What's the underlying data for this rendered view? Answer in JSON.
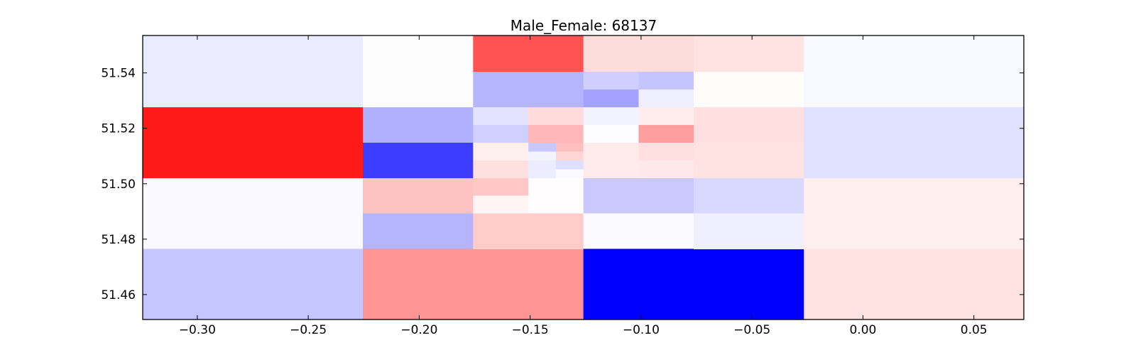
{
  "chart_data": {
    "type": "heatmap",
    "title": "Male_Female: 68137",
    "xlabel": "",
    "ylabel": "",
    "xlim": [
      -0.3246,
      0.0725
    ],
    "ylim": [
      51.451,
      51.5535
    ],
    "grid": false,
    "x_ticks": [
      {
        "value": -0.3,
        "label": "−0.30"
      },
      {
        "value": -0.25,
        "label": "−0.25"
      },
      {
        "value": -0.2,
        "label": "−0.20"
      },
      {
        "value": -0.15,
        "label": "−0.15"
      },
      {
        "value": -0.1,
        "label": "−0.10"
      },
      {
        "value": -0.05,
        "label": "−0.05"
      },
      {
        "value": 0.0,
        "label": "0.00"
      },
      {
        "value": 0.05,
        "label": "0.05"
      }
    ],
    "y_ticks": [
      {
        "value": 51.46,
        "label": "51.46"
      },
      {
        "value": 51.48,
        "label": "51.48"
      },
      {
        "value": 51.5,
        "label": "51.50"
      },
      {
        "value": 51.52,
        "label": "51.52"
      },
      {
        "value": 51.54,
        "label": "51.54"
      }
    ],
    "cells": [
      {
        "x0": -0.3246,
        "x1": -0.2254,
        "y0": 51.5276,
        "y1": 51.5535,
        "color": "#ebebff"
      },
      {
        "x0": -0.3246,
        "x1": -0.2254,
        "y0": 51.502,
        "y1": 51.5276,
        "color": "#ff1a1a"
      },
      {
        "x0": -0.3246,
        "x1": -0.2254,
        "y0": 51.4765,
        "y1": 51.502,
        "color": "#f9f9ff"
      },
      {
        "x0": -0.3246,
        "x1": -0.2254,
        "y0": 51.451,
        "y1": 51.4765,
        "color": "#c5c5ff"
      },
      {
        "x0": -0.2254,
        "x1": -0.1757,
        "y0": 51.5276,
        "y1": 51.5535,
        "color": "#fdfdfd"
      },
      {
        "x0": -0.2254,
        "x1": -0.1757,
        "y0": 51.5148,
        "y1": 51.5276,
        "color": "#b0b0ff"
      },
      {
        "x0": -0.2254,
        "x1": -0.1757,
        "y0": 51.502,
        "y1": 51.5148,
        "color": "#3d3dff"
      },
      {
        "x0": -0.2254,
        "x1": -0.1757,
        "y0": 51.4893,
        "y1": 51.502,
        "color": "#ffc2c2"
      },
      {
        "x0": -0.2254,
        "x1": -0.1757,
        "y0": 51.4765,
        "y1": 51.4893,
        "color": "#b5b5ff"
      },
      {
        "x0": -0.2254,
        "x1": -0.126,
        "y0": 51.451,
        "y1": 51.4765,
        "color": "#ff9494"
      },
      {
        "x0": -0.1757,
        "x1": -0.126,
        "y0": 51.5404,
        "y1": 51.5535,
        "color": "#ff5252"
      },
      {
        "x0": -0.1757,
        "x1": -0.126,
        "y0": 51.5276,
        "y1": 51.5404,
        "color": "#b5b5ff"
      },
      {
        "x0": -0.1757,
        "x1": -0.1508,
        "y0": 51.5212,
        "y1": 51.5276,
        "color": "#e3e3ff"
      },
      {
        "x0": -0.1757,
        "x1": -0.1508,
        "y0": 51.5148,
        "y1": 51.5212,
        "color": "#d0d0ff"
      },
      {
        "x0": -0.1508,
        "x1": -0.126,
        "y0": 51.5212,
        "y1": 51.5276,
        "color": "#ffdbdb"
      },
      {
        "x0": -0.1508,
        "x1": -0.126,
        "y0": 51.5148,
        "y1": 51.5212,
        "color": "#ffb7b7"
      },
      {
        "x0": -0.1757,
        "x1": -0.1508,
        "y0": 51.5084,
        "y1": 51.5148,
        "color": "#fff0f0"
      },
      {
        "x0": -0.1757,
        "x1": -0.1508,
        "y0": 51.502,
        "y1": 51.5084,
        "color": "#ffe0e0"
      },
      {
        "x0": -0.1508,
        "x1": -0.1384,
        "y0": 51.5116,
        "y1": 51.5148,
        "color": "#c8c8ff"
      },
      {
        "x0": -0.1384,
        "x1": -0.126,
        "y0": 51.5116,
        "y1": 51.5148,
        "color": "#ffbfbf"
      },
      {
        "x0": -0.1508,
        "x1": -0.1384,
        "y0": 51.5084,
        "y1": 51.5116,
        "color": "#f3f3ff"
      },
      {
        "x0": -0.1384,
        "x1": -0.126,
        "y0": 51.5084,
        "y1": 51.5116,
        "color": "#ffd6d6"
      },
      {
        "x0": -0.1508,
        "x1": -0.1384,
        "y0": 51.5052,
        "y1": 51.5084,
        "color": "#ececff"
      },
      {
        "x0": -0.1384,
        "x1": -0.126,
        "y0": 51.5052,
        "y1": 51.5084,
        "color": "#dedeff"
      },
      {
        "x0": -0.1508,
        "x1": -0.1384,
        "y0": 51.502,
        "y1": 51.5052,
        "color": "#ededff"
      },
      {
        "x0": -0.1384,
        "x1": -0.126,
        "y0": 51.502,
        "y1": 51.5052,
        "color": "#fafaff"
      },
      {
        "x0": -0.1757,
        "x1": -0.1508,
        "y0": 51.4957,
        "y1": 51.502,
        "color": "#ffc7c7"
      },
      {
        "x0": -0.1757,
        "x1": -0.1508,
        "y0": 51.4893,
        "y1": 51.4957,
        "color": "#fff5f5"
      },
      {
        "x0": -0.1508,
        "x1": -0.126,
        "y0": 51.4893,
        "y1": 51.502,
        "color": "#fffdfd"
      },
      {
        "x0": -0.1757,
        "x1": -0.126,
        "y0": 51.4765,
        "y1": 51.4893,
        "color": "#ffcbcb"
      },
      {
        "x0": -0.126,
        "x1": -0.0763,
        "y0": 51.5404,
        "y1": 51.5535,
        "color": "#ffdcdc"
      },
      {
        "x0": -0.126,
        "x1": -0.1011,
        "y0": 51.534,
        "y1": 51.5404,
        "color": "#cfcfff"
      },
      {
        "x0": -0.1011,
        "x1": -0.0763,
        "y0": 51.534,
        "y1": 51.5404,
        "color": "#c4c4ff"
      },
      {
        "x0": -0.126,
        "x1": -0.1011,
        "y0": 51.5276,
        "y1": 51.534,
        "color": "#a3a3ff"
      },
      {
        "x0": -0.1011,
        "x1": -0.0763,
        "y0": 51.5276,
        "y1": 51.534,
        "color": "#efefff"
      },
      {
        "x0": -0.126,
        "x1": -0.1011,
        "y0": 51.5212,
        "y1": 51.5276,
        "color": "#f3f3ff"
      },
      {
        "x0": -0.1011,
        "x1": -0.0763,
        "y0": 51.5212,
        "y1": 51.5276,
        "color": "#ffeded"
      },
      {
        "x0": -0.126,
        "x1": -0.1011,
        "y0": 51.5148,
        "y1": 51.5212,
        "color": "#fdfdff"
      },
      {
        "x0": -0.1011,
        "x1": -0.0763,
        "y0": 51.5148,
        "y1": 51.5212,
        "color": "#ff9e9e"
      },
      {
        "x0": -0.126,
        "x1": -0.1011,
        "y0": 51.502,
        "y1": 51.5148,
        "color": "#ffeaea"
      },
      {
        "x0": -0.1011,
        "x1": -0.0763,
        "y0": 51.5084,
        "y1": 51.5148,
        "color": "#ffe0e0"
      },
      {
        "x0": -0.1011,
        "x1": -0.0763,
        "y0": 51.502,
        "y1": 51.5084,
        "color": "#ffe8e8"
      },
      {
        "x0": -0.126,
        "x1": -0.0763,
        "y0": 51.4893,
        "y1": 51.502,
        "color": "#c9c9ff"
      },
      {
        "x0": -0.126,
        "x1": -0.0763,
        "y0": 51.4765,
        "y1": 51.4893,
        "color": "#fafaff"
      },
      {
        "x0": -0.126,
        "x1": -0.0266,
        "y0": 51.451,
        "y1": 51.4765,
        "color": "#0000ff"
      },
      {
        "x0": -0.0763,
        "x1": -0.0266,
        "y0": 51.5404,
        "y1": 51.5535,
        "color": "#ffe2e2"
      },
      {
        "x0": -0.0763,
        "x1": -0.0266,
        "y0": 51.5276,
        "y1": 51.5404,
        "color": "#fffcfa"
      },
      {
        "x0": -0.0763,
        "x1": -0.0266,
        "y0": 51.5148,
        "y1": 51.5276,
        "color": "#ffdfdf"
      },
      {
        "x0": -0.0763,
        "x1": -0.0266,
        "y0": 51.502,
        "y1": 51.5148,
        "color": "#ffe3e3"
      },
      {
        "x0": -0.0763,
        "x1": -0.0266,
        "y0": 51.4893,
        "y1": 51.502,
        "color": "#d9d9ff"
      },
      {
        "x0": -0.0763,
        "x1": -0.0266,
        "y0": 51.4765,
        "y1": 51.4893,
        "color": "#efefff"
      },
      {
        "x0": -0.0266,
        "x1": 0.0725,
        "y0": 51.5276,
        "y1": 51.5535,
        "color": "#f8f8ff"
      },
      {
        "x0": -0.0266,
        "x1": 0.0725,
        "y0": 51.502,
        "y1": 51.5276,
        "color": "#e0e0ff"
      },
      {
        "x0": -0.0266,
        "x1": 0.0725,
        "y0": 51.4765,
        "y1": 51.502,
        "color": "#ffeeee"
      },
      {
        "x0": -0.0266,
        "x1": 0.0725,
        "y0": 51.451,
        "y1": 51.4765,
        "color": "#ffe3e3"
      }
    ]
  }
}
